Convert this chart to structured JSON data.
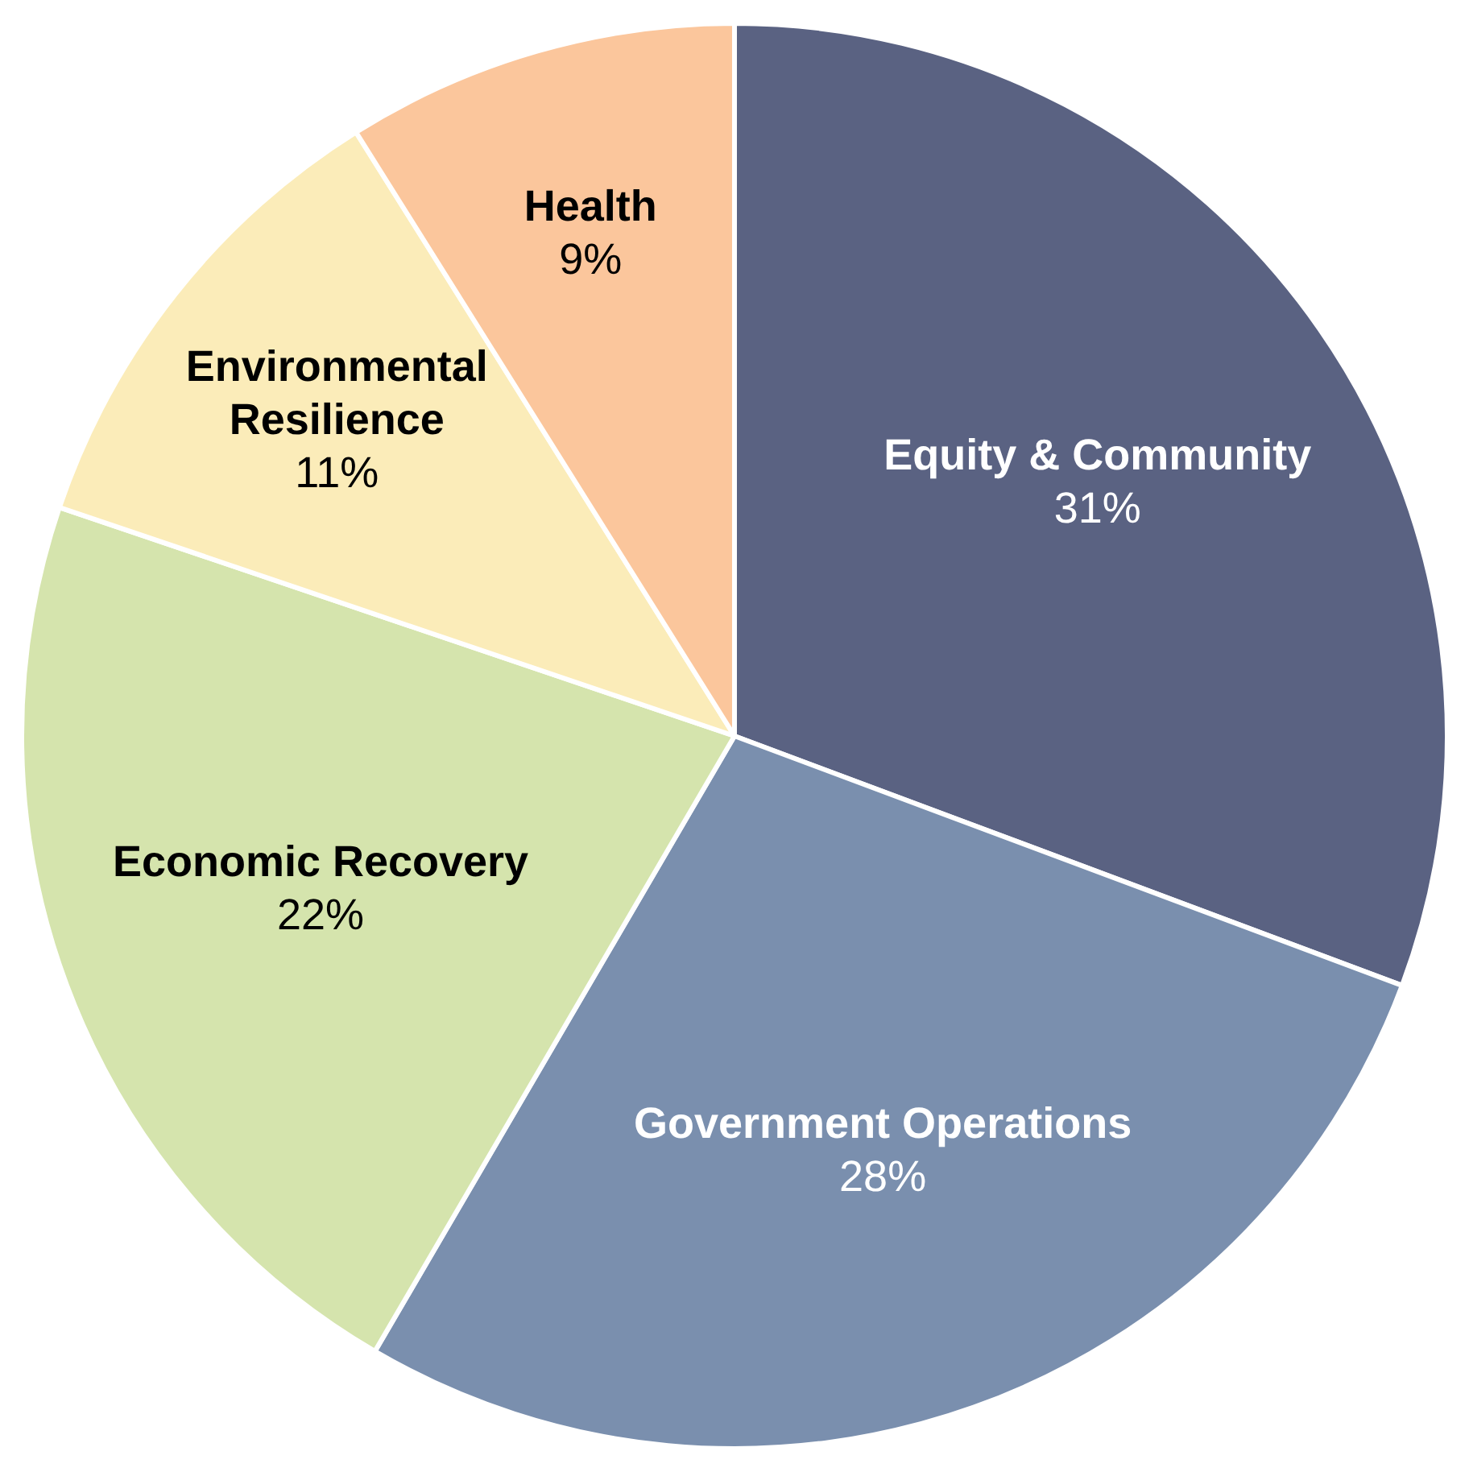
{
  "chart_data": {
    "type": "pie",
    "categories": [
      "Equity & Community",
      "Government Operations",
      "Economic Recovery",
      "Environmental Resilience",
      "Health"
    ],
    "values": [
      31,
      28,
      22,
      11,
      9
    ],
    "colors": [
      "#5a6282",
      "#7a8fae",
      "#d5e4ad",
      "#fbecb9",
      "#fbc69c"
    ],
    "value_labels": [
      "31%",
      "28%",
      "22%",
      "11%",
      "9%"
    ],
    "legend": false
  }
}
